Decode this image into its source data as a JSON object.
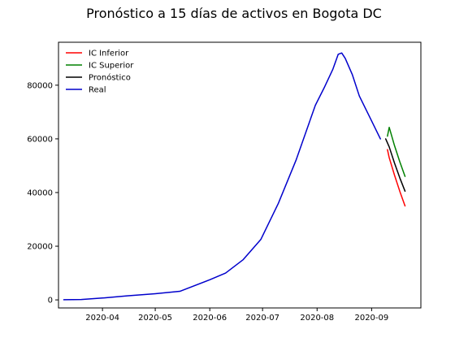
{
  "chart_data": {
    "type": "line",
    "title": "Pronóstico a 15 días de activos en Bogota DC",
    "xlabel": "",
    "ylabel": "",
    "xlim": [
      "2020-03-07",
      "2020-09-29"
    ],
    "ylim": [
      -3000,
      96000
    ],
    "x_ticks": [
      "2020-04",
      "2020-05",
      "2020-06",
      "2020-07",
      "2020-08",
      "2020-09"
    ],
    "y_ticks": [
      0,
      20000,
      40000,
      60000,
      80000
    ],
    "grid": false,
    "legend_position": "top-left",
    "legend": [
      "IC Inferior",
      "IC Superior",
      "Pronóstico",
      "Real"
    ],
    "series": [
      {
        "name": "IC Inferior",
        "color": "#ff0000",
        "points": [
          [
            "2020-09-10",
            56000
          ],
          [
            "2020-09-11",
            53000
          ],
          [
            "2020-09-14",
            46500
          ],
          [
            "2020-09-17",
            40500
          ],
          [
            "2020-09-20",
            35000
          ]
        ]
      },
      {
        "name": "IC Superior",
        "color": "#008000",
        "points": [
          [
            "2020-09-10",
            61000
          ],
          [
            "2020-09-11",
            64300
          ],
          [
            "2020-09-14",
            57500
          ],
          [
            "2020-09-17",
            51500
          ],
          [
            "2020-09-20",
            46000
          ]
        ]
      },
      {
        "name": "Pronóstico",
        "color": "#000000",
        "points": [
          [
            "2020-09-09",
            60000
          ],
          [
            "2020-09-11",
            57000
          ],
          [
            "2020-09-14",
            51000
          ],
          [
            "2020-09-17",
            45500
          ],
          [
            "2020-09-20",
            40500
          ]
        ]
      },
      {
        "name": "Real",
        "color": "#0000cc",
        "points": [
          [
            "2020-03-10",
            50
          ],
          [
            "2020-03-20",
            150
          ],
          [
            "2020-04-01",
            700
          ],
          [
            "2020-04-15",
            1500
          ],
          [
            "2020-05-01",
            2300
          ],
          [
            "2020-05-15",
            3200
          ],
          [
            "2020-06-01",
            7500
          ],
          [
            "2020-06-10",
            10000
          ],
          [
            "2020-06-20",
            15000
          ],
          [
            "2020-06-30",
            22500
          ],
          [
            "2020-07-10",
            36000
          ],
          [
            "2020-07-20",
            52000
          ],
          [
            "2020-07-31",
            72500
          ],
          [
            "2020-08-05",
            79000
          ],
          [
            "2020-08-10",
            86000
          ],
          [
            "2020-08-13",
            91500
          ],
          [
            "2020-08-15",
            92000
          ],
          [
            "2020-08-17",
            90000
          ],
          [
            "2020-08-21",
            84000
          ],
          [
            "2020-08-25",
            76000
          ],
          [
            "2020-08-31",
            68000
          ],
          [
            "2020-09-06",
            60000
          ]
        ]
      }
    ]
  }
}
